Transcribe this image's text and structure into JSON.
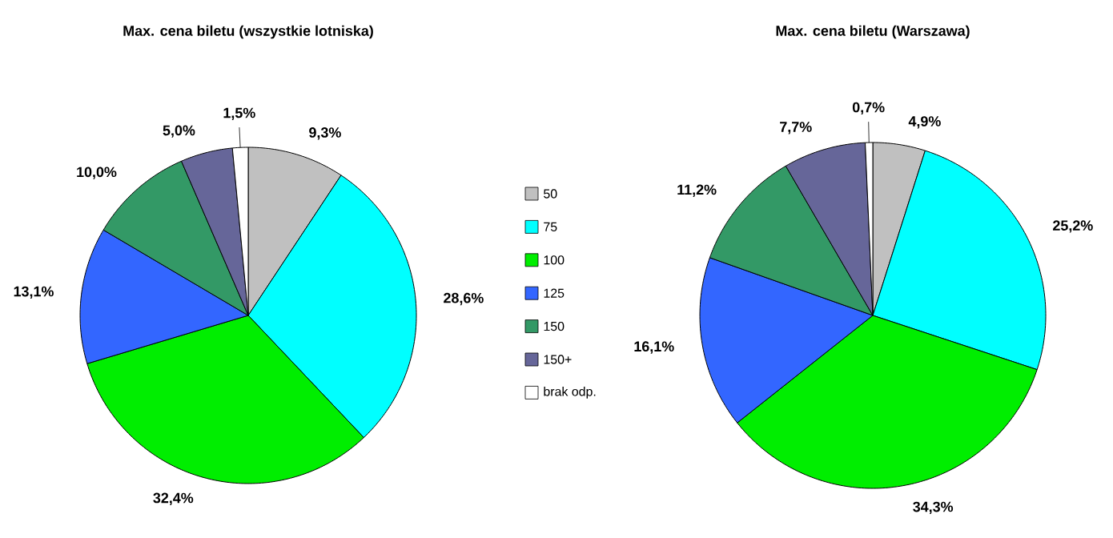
{
  "chart_data": [
    {
      "type": "pie",
      "title": "Max. cena biletu (wszystkie lotniska)",
      "categories": [
        "50",
        "75",
        "100",
        "125",
        "150",
        "150+",
        "brak odp."
      ],
      "values": [
        9.3,
        28.6,
        32.4,
        13.1,
        10.0,
        5.0,
        1.5
      ],
      "value_labels": [
        "9,3%",
        "28,6%",
        "32,4%",
        "13,1%",
        "10,0%",
        "5,0%",
        "1,5%"
      ],
      "colors": [
        "#c0c0c0",
        "#00ffff",
        "#00ee00",
        "#3366ff",
        "#339966",
        "#666699",
        "#ffffff"
      ],
      "legend": "right"
    },
    {
      "type": "pie",
      "title": "Max. cena biletu (Warszawa)",
      "categories": [
        null,
        null,
        null,
        null,
        null,
        null,
        null
      ],
      "values": [
        4.9,
        25.2,
        34.3,
        16.1,
        11.2,
        7.7,
        0.7
      ],
      "value_labels": [
        "4,9%",
        "25,2%",
        "34,3%",
        "16,1%",
        "11,2%",
        "7,7%",
        "0,7%"
      ],
      "colors": [
        "#c0c0c0",
        "#00ffff",
        "#00ee00",
        "#3366ff",
        "#339966",
        "#666699",
        "#ffffff"
      ]
    }
  ]
}
